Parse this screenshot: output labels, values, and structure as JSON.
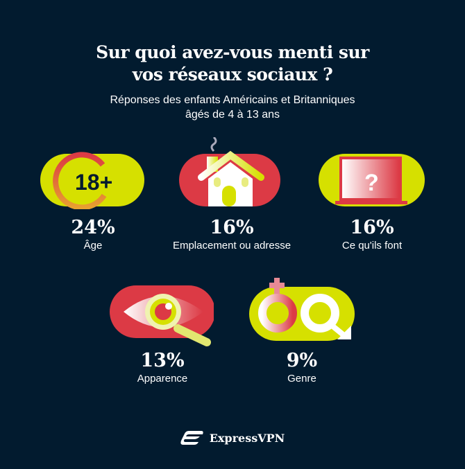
{
  "title_line1": "Sur quoi avez-vous menti sur",
  "title_line2": "vos réseaux sociaux ?",
  "subtitle_line1": "Réponses des enfants Américains et Britanniques",
  "subtitle_line2": "âgés de 4 à 13 ans",
  "colors": {
    "background": "#021b2f",
    "yellow": "#d6e000",
    "red": "#dc3a45"
  },
  "chart_data": {
    "type": "table",
    "categories": [
      "Âge",
      "Emplacement ou adresse",
      "Ce qu'ils font",
      "Apparence",
      "Genre"
    ],
    "values": [
      24,
      16,
      16,
      13,
      9
    ],
    "labels": [
      "24%",
      "16%",
      "16%",
      "13%",
      "9%"
    ],
    "icons": [
      "18-plus-icon",
      "house-icon",
      "laptop-question-icon",
      "eye-magnifier-icon",
      "gender-symbols-icon"
    ]
  },
  "age_badge": "18+",
  "brand": "ExpressVPN"
}
